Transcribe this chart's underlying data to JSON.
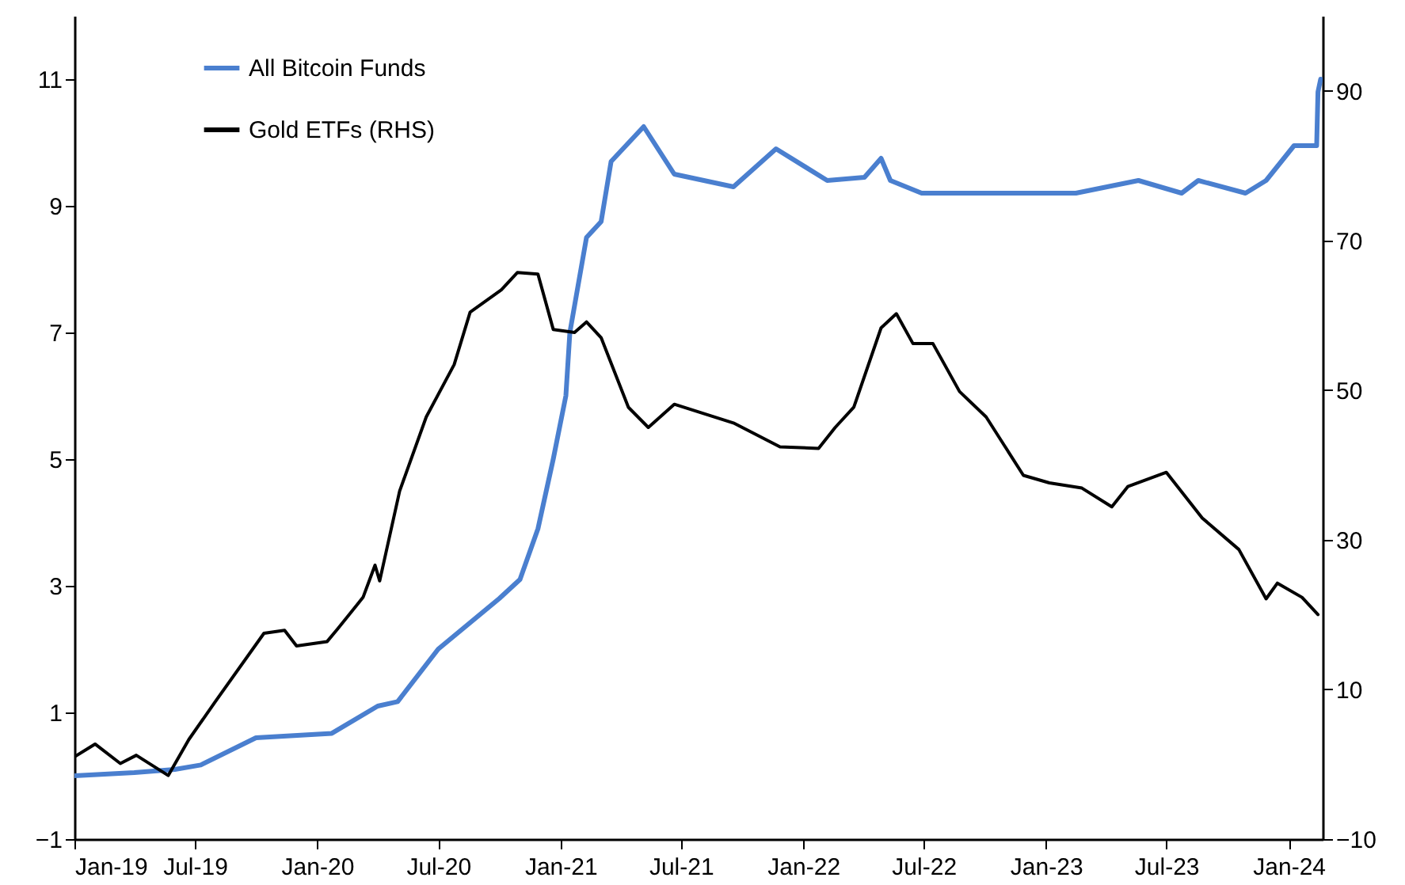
{
  "chart_data": {
    "type": "line",
    "legend": "top left",
    "grid": false,
    "marker": "none",
    "line_style": "solid",
    "xlim": [
      "2019-01-01",
      "2024-02-21"
    ],
    "xticks": [
      {
        "value": "2019-01-01",
        "label": "Jan-19"
      },
      {
        "value": "2019-07-01",
        "label": "Jul-19"
      },
      {
        "value": "2020-01-01",
        "label": "Jan-20"
      },
      {
        "value": "2020-07-01",
        "label": "Jul-20"
      },
      {
        "value": "2021-01-01",
        "label": "Jan-21"
      },
      {
        "value": "2021-07-01",
        "label": "Jul-21"
      },
      {
        "value": "2022-01-01",
        "label": "Jan-22"
      },
      {
        "value": "2022-07-01",
        "label": "Jul-22"
      },
      {
        "value": "2023-01-01",
        "label": "Jan-23"
      },
      {
        "value": "2023-07-01",
        "label": "Jul-23"
      },
      {
        "value": "2024-01-01",
        "label": "Jan-24"
      }
    ],
    "ylim": [
      -1,
      12
    ],
    "yticks": [
      -1,
      1,
      3,
      5,
      7,
      9,
      11
    ],
    "y2lim": [
      -10,
      100
    ],
    "y2ticks": [
      -10,
      10,
      30,
      50,
      70,
      90
    ],
    "series": [
      {
        "name": "All Bitcoin Funds",
        "color": "#4a7fcf",
        "x": [
          "2019-01-01",
          "2019-04-01",
          "2019-06-01",
          "2019-07-10",
          "2019-10-01",
          "2020-01-23",
          "2020-04-01",
          "2020-05-01",
          "2020-07-01",
          "2020-10-01",
          "2020-11-01",
          "2020-11-28",
          "2020-12-21",
          "2021-01-09",
          "2021-01-15",
          "2021-02-09",
          "2021-03-03",
          "2021-03-18",
          "2021-05-06",
          "2021-06-21",
          "2021-09-18",
          "2021-11-21",
          "2022-02-06",
          "2022-04-03",
          "2022-04-28",
          "2022-05-12",
          "2022-06-28",
          "2023-02-15",
          "2023-05-20",
          "2023-07-24",
          "2023-08-18",
          "2023-10-28",
          "2023-11-28",
          "2024-01-09",
          "2024-02-12",
          "2024-02-14",
          "2024-02-18"
        ],
        "values": [
          0.0,
          0.05,
          0.1,
          0.17,
          0.6,
          0.67,
          1.1,
          1.17,
          2.0,
          2.8,
          3.1,
          3.9,
          5.0,
          6.0,
          7.0,
          8.5,
          8.75,
          9.7,
          10.25,
          9.5,
          9.3,
          9.9,
          9.4,
          9.45,
          9.75,
          9.4,
          9.2,
          9.2,
          9.4,
          9.2,
          9.4,
          9.2,
          9.4,
          9.95,
          9.95,
          10.8,
          11.0
        ]
      },
      {
        "name": "Gold ETFs (RHS)",
        "color": "#000000",
        "axis": "y2",
        "x": [
          "2019-01-01",
          "2019-02-01",
          "2019-03-11",
          "2019-04-04",
          "2019-05-22",
          "2019-06-22",
          "2019-08-01",
          "2019-10-13",
          "2019-11-13",
          "2019-12-01",
          "2020-01-16",
          "2020-02-01",
          "2020-03-10",
          "2020-03-28",
          "2020-04-04",
          "2020-05-04",
          "2020-06-13",
          "2020-07-25",
          "2020-08-18",
          "2020-10-04",
          "2020-10-28",
          "2020-11-28",
          "2020-12-21",
          "2021-01-22",
          "2021-02-09",
          "2021-03-03",
          "2021-04-13",
          "2021-05-13",
          "2021-06-21",
          "2021-09-18",
          "2021-11-27",
          "2022-01-24",
          "2022-02-18",
          "2022-03-18",
          "2022-04-28",
          "2022-05-21",
          "2022-06-15",
          "2022-07-15",
          "2022-08-24",
          "2022-10-03",
          "2022-11-28",
          "2023-01-06",
          "2023-02-24",
          "2023-04-10",
          "2023-05-04",
          "2023-07-01",
          "2023-08-24",
          "2023-10-18",
          "2023-11-28",
          "2023-12-15",
          "2024-01-21",
          "2024-02-14"
        ],
        "values": [
          1.0,
          2.7,
          0.1,
          1.2,
          -1.5,
          3.3,
          8.4,
          17.5,
          17.9,
          15.8,
          16.4,
          18.1,
          22.3,
          26.6,
          24.5,
          36.5,
          46.4,
          53.4,
          60.4,
          63.4,
          65.7,
          65.5,
          58.1,
          57.7,
          59.1,
          57.0,
          47.7,
          45.0,
          48.1,
          45.6,
          42.4,
          42.2,
          45.0,
          47.7,
          58.3,
          60.2,
          56.2,
          56.2,
          49.8,
          46.4,
          38.6,
          37.6,
          36.9,
          34.4,
          37.1,
          39.0,
          32.9,
          28.7,
          22.1,
          24.2,
          22.3,
          20.0
        ]
      }
    ]
  }
}
